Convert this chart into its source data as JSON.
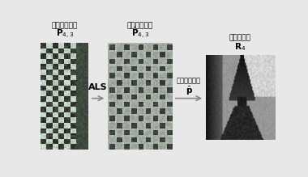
{
  "bg_color": "#e8e8e8",
  "title1": "稀疏比较矩阵",
  "label1": "$\\mathbf{P}_{4,3}$",
  "title2": "稠密比较矩阵",
  "label2": "$\\bar{\\mathbf{P}}_{4,3}$",
  "title3": "相对深度图",
  "label3": "$\\mathbf{R}_{4}$",
  "arrow1_text": "ALS",
  "arrow2_text1": "归一化和重塑",
  "arrow2_text2": "$\\bar{\\mathbf{p}}$"
}
